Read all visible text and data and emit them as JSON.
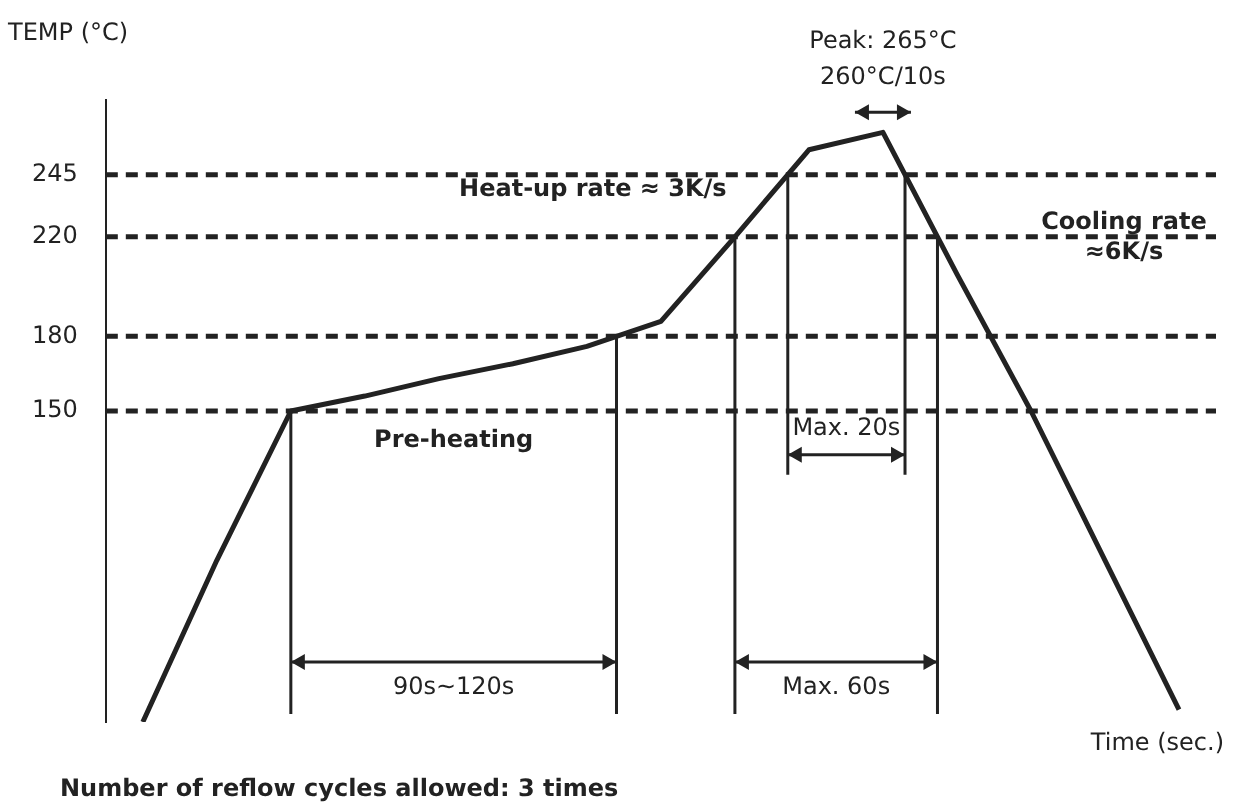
{
  "chart_data": {
    "type": "line",
    "ylabel": "TEMP (°C)",
    "xlabel": "Time (sec.)",
    "categories": [
      null,
      null,
      null,
      null,
      null,
      null,
      null,
      null,
      null,
      null,
      null,
      null,
      null,
      null,
      null
    ],
    "series": [
      {
        "color": "#222222",
        "values": [
          25,
          90,
          150,
          156,
          163,
          169,
          176,
          186,
          220,
          255,
          262,
          205,
          150,
          90,
          30
        ]
      }
    ],
    "ylim": [
      25,
      275
    ],
    "yticks": [
      150,
      180,
      220,
      245
    ],
    "grid": false,
    "legend": false,
    "marker": "none",
    "line_style": "solid",
    "tick_labels": "y",
    "ref_lines": [
      {
        "axis": "y",
        "value": 150,
        "line_style": "dashed",
        "color": "#222222"
      },
      {
        "axis": "y",
        "value": 180,
        "line_style": "dashed",
        "color": "#222222"
      },
      {
        "axis": "y",
        "value": 220,
        "line_style": "dashed",
        "color": "#222222"
      },
      {
        "axis": "y",
        "value": 245,
        "line_style": "dashed",
        "color": "#222222"
      }
    ],
    "annotations": [
      "Peak: 265°C",
      "260°C/10s",
      "Heat-up rate ≈ 3K/s",
      "Cooling rate\n≈6K/s",
      "Pre-heating",
      "90s~120s",
      "Max. 20s",
      "Max. 60s",
      "Number of reflow cycles allowed: 3 times"
    ]
  }
}
